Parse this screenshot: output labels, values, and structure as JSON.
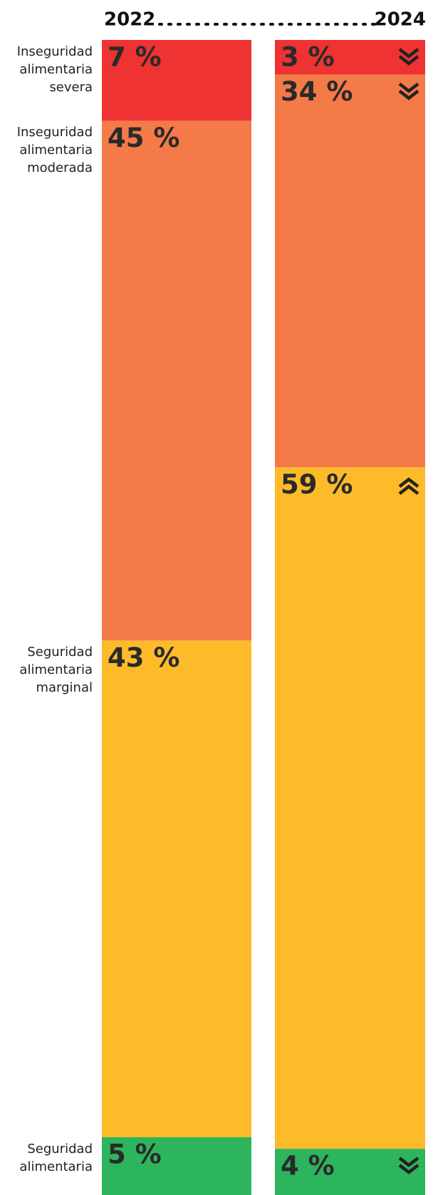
{
  "chart_data": {
    "type": "stacked-bar",
    "categories": [
      "2022",
      "2024"
    ],
    "series": [
      {
        "name": "Inseguridad alimentaria severa",
        "color": "#ef3232",
        "values": [
          7,
          3
        ],
        "value_labels": [
          "7 %",
          "3 %"
        ]
      },
      {
        "name": "Inseguridad alimentaria moderada",
        "color": "#f47a48",
        "values": [
          45,
          34
        ],
        "value_labels": [
          "45 %",
          "34 %"
        ]
      },
      {
        "name": "Seguridad alimentaria marginal",
        "color": "#fdbb2a",
        "values": [
          43,
          59
        ],
        "value_labels": [
          "43 %",
          "59 %"
        ]
      },
      {
        "name": "Seguridad alimentaria",
        "color": "#2db55d",
        "values": [
          5,
          4
        ],
        "value_labels": [
          "5 %",
          "4 %"
        ]
      }
    ]
  }
}
